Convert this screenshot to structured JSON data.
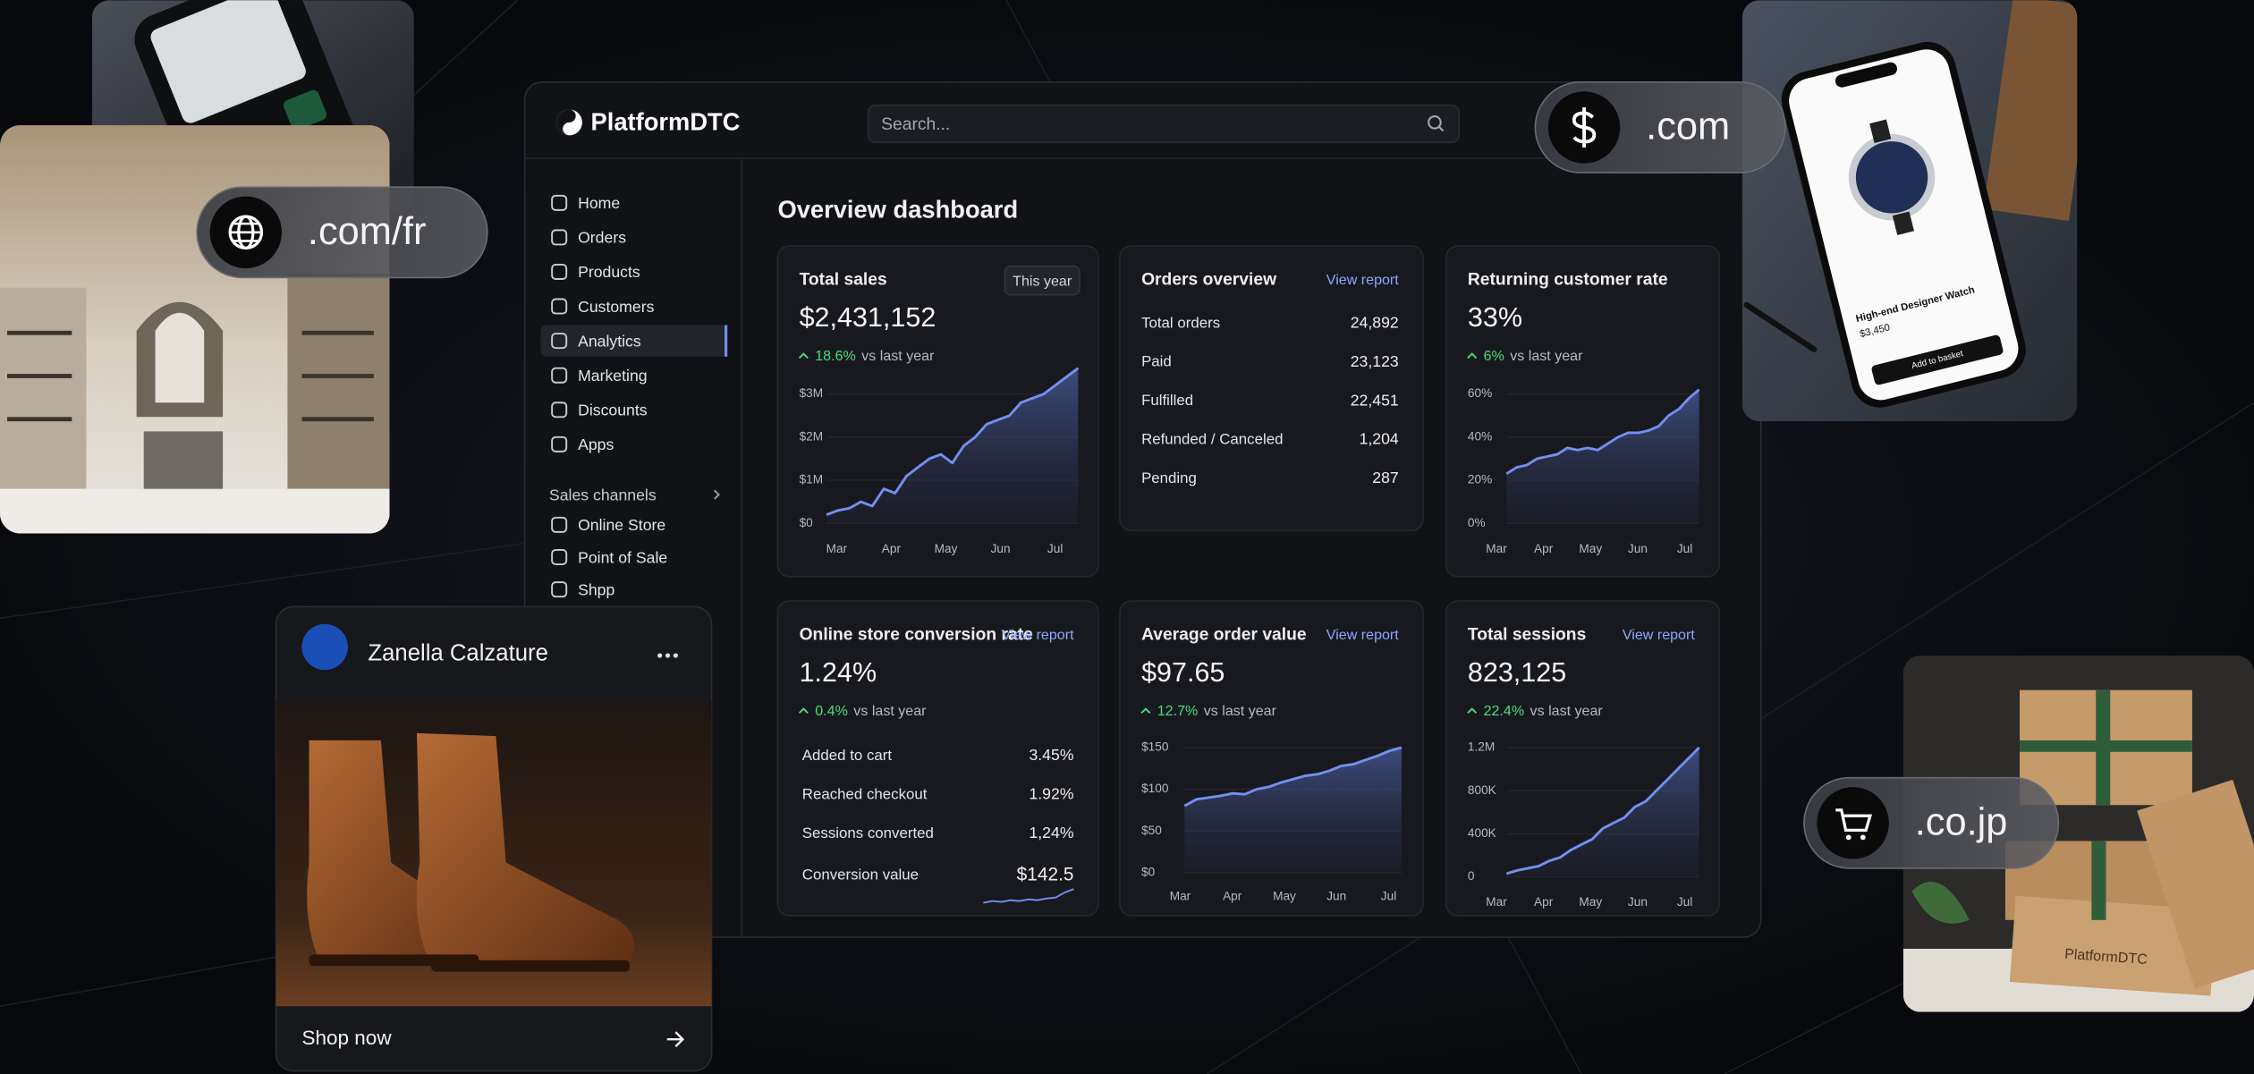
{
  "logo": "PlatformDTC",
  "search_placeholder": "Search...",
  "nav": [
    "Home",
    "Orders",
    "Products",
    "Customers",
    "Analytics",
    "Marketing",
    "Discounts",
    "Apps"
  ],
  "sales_channels": {
    "title": "Sales channels",
    "items": [
      "Online Store",
      "Point of Sale",
      "Shpp"
    ]
  },
  "page_title": "Overview dashboard",
  "cards": {
    "total_sales": {
      "title": "Total sales",
      "badge": "This year",
      "value": "$2,431,152",
      "change": "18.6%",
      "change_label": "vs last year",
      "chart": {
        "type": "area",
        "color": "#7390f0",
        "ylim": [
          0,
          3.8
        ],
        "yticks": [
          {
            "value": 3,
            "label": "$3M"
          },
          {
            "value": 2,
            "label": "$2M"
          },
          {
            "value": 1,
            "label": "$1M"
          },
          {
            "value": 0,
            "label": "$0"
          }
        ],
        "xlabels": [
          "Mar",
          "Apr",
          "May",
          "Jun",
          "Jul"
        ],
        "values": [
          0.2,
          0.3,
          0.35,
          0.5,
          0.4,
          0.8,
          0.7,
          1.1,
          1.3,
          1.5,
          1.6,
          1.4,
          1.8,
          2.0,
          2.3,
          2.4,
          2.5,
          2.8,
          2.9,
          3.0,
          3.2,
          3.4,
          3.6
        ]
      }
    },
    "orders_overview": {
      "title": "Orders overview",
      "link": "View report",
      "rows": [
        [
          "Total orders",
          "24,892"
        ],
        [
          "Paid",
          "23,123"
        ],
        [
          "Fulfilled",
          "22,451"
        ],
        [
          "Refunded / Canceled",
          "1,204"
        ],
        [
          "Pending",
          "287"
        ]
      ]
    },
    "returning_customer_rate": {
      "title": "Returning customer rate",
      "value": "33%",
      "change": "6%",
      "change_label": "vs last year",
      "chart": {
        "type": "area",
        "color": "#7390f0",
        "ylim": [
          0,
          76
        ],
        "yticks": [
          {
            "value": 60,
            "label": "60%"
          },
          {
            "value": 40,
            "label": "40%"
          },
          {
            "value": 20,
            "label": "20%"
          },
          {
            "value": 0,
            "label": "0%"
          }
        ],
        "xlabels": [
          "Mar",
          "Apr",
          "May",
          "Jun",
          "Jul"
        ],
        "values": [
          23,
          26,
          27,
          30,
          31,
          32,
          35,
          34,
          35,
          34,
          37,
          40,
          42,
          42,
          43,
          45,
          50,
          53,
          58,
          62
        ]
      }
    },
    "conversion_rate": {
      "title": "Online store conversion rate",
      "link": "View report",
      "value": "1.24%",
      "change": "0.4%",
      "change_label": "vs last year",
      "rows": [
        [
          "Added to cart",
          "3.45%"
        ],
        [
          "Reached checkout",
          "1.92%"
        ],
        [
          "Sessions converted",
          "1,24%"
        ],
        [
          "Conversion value",
          "$142.5"
        ]
      ],
      "sparkline": {
        "color": "#7390f0",
        "ylim": [
          0,
          3
        ],
        "values": [
          1.0,
          1.2,
          1.1,
          1.3,
          1.2,
          1.4,
          1.3,
          1.5,
          1.6,
          2.2,
          2.6
        ]
      }
    },
    "average_order_value": {
      "title": "Average order value",
      "link": "View report",
      "value": "$97.65",
      "change": "12.7%",
      "change_label": "vs last year",
      "chart": {
        "type": "area",
        "color": "#7390f0",
        "ylim": [
          0,
          170
        ],
        "yticks": [
          {
            "value": 150,
            "label": "$150"
          },
          {
            "value": 100,
            "label": "$100"
          },
          {
            "value": 50,
            "label": "$50"
          },
          {
            "value": 0,
            "label": "$0"
          }
        ],
        "xlabels": [
          "Mar",
          "Apr",
          "May",
          "Jun",
          "Jul"
        ],
        "values": [
          80,
          88,
          90,
          92,
          95,
          94,
          100,
          103,
          108,
          112,
          116,
          118,
          122,
          128,
          130,
          135,
          140,
          146,
          150
        ]
      }
    },
    "total_sessions": {
      "title": "Total sessions",
      "link": "View report",
      "value": "823,125",
      "change": "22.4%",
      "change_label": "vs last year",
      "chart": {
        "type": "area",
        "color": "#7390f0",
        "ylim": [
          0,
          1300000
        ],
        "yticks": [
          {
            "value": 1200000,
            "label": "1.2M"
          },
          {
            "value": 800000,
            "label": "800K"
          },
          {
            "value": 400000,
            "label": "400K"
          },
          0
        ],
        "xlabels": [
          "Mar",
          "Apr",
          "May",
          "Jun",
          "Jul"
        ],
        "values": [
          30000,
          60000,
          80000,
          100000,
          150000,
          180000,
          250000,
          300000,
          350000,
          450000,
          500000,
          550000,
          650000,
          700000,
          800000,
          900000,
          1000000,
          1100000,
          1200000
        ]
      }
    }
  },
  "brand_card": {
    "name": "Zanella Calzature",
    "cta": "Shop now"
  },
  "domains": [
    ".com/fr",
    ".com",
    ".co.jp"
  ],
  "product": {
    "name": "High-end Designer Watch",
    "price": "$3,450",
    "button": "Add to basket"
  },
  "box_label": "PlatformDTC"
}
